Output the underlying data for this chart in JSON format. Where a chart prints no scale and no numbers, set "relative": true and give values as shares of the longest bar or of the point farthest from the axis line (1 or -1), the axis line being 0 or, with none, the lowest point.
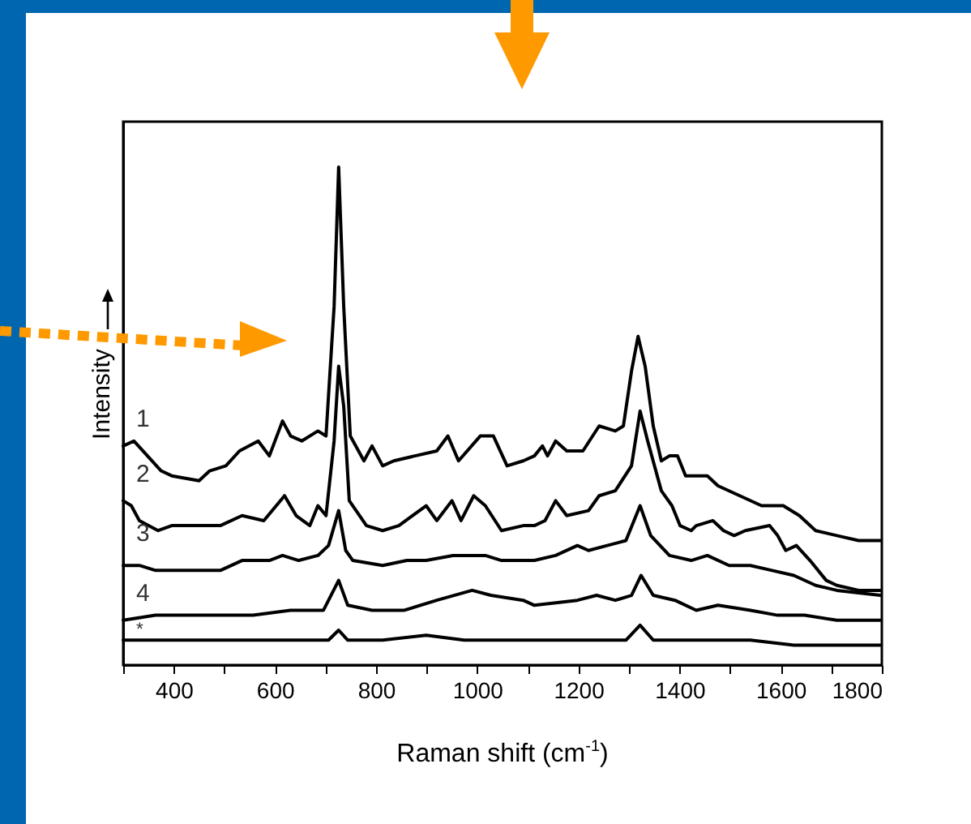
{
  "chart_data": {
    "type": "line",
    "relative": true,
    "xlabel": "Raman shift (cm$^{-1}$)",
    "ylabel": "Intensity",
    "xlim": [
      300,
      1800
    ],
    "xticks": [
      {
        "value": 300,
        "label": null
      },
      400,
      {
        "value": 500,
        "label": null
      },
      600,
      {
        "value": 700,
        "label": null
      },
      800,
      {
        "value": 900,
        "label": null
      },
      1000,
      {
        "value": 1100,
        "label": null
      },
      1200,
      {
        "value": 1300,
        "label": null
      },
      1400,
      {
        "value": 1500,
        "label": null
      },
      1600,
      {
        "value": 1700,
        "label": null
      },
      1800
    ],
    "grid": false,
    "line_style": "solid",
    "series": [
      {
        "name": "1",
        "color": "#000000",
        "x": [
          300,
          321,
          375,
          396,
          450,
          471,
          503,
          530,
          567,
          589,
          615,
          631,
          653,
          685,
          701,
          717,
          726,
          736,
          749,
          776,
          792,
          813,
          835,
          877,
          920,
          942,
          963,
          1006,
          1032,
          1059,
          1091,
          1113,
          1129,
          1139,
          1155,
          1177,
          1209,
          1241,
          1273,
          1289,
          1305,
          1318,
          1332,
          1348,
          1364,
          1380,
          1396,
          1412,
          1455,
          1476,
          1519,
          1562,
          1605,
          1637,
          1669,
          1711,
          1754,
          1797
        ],
        "values": [
          0.44,
          0.45,
          0.39,
          0.38,
          0.37,
          0.39,
          0.4,
          0.43,
          0.45,
          0.42,
          0.49,
          0.46,
          0.45,
          0.47,
          0.46,
          0.72,
          1,
          0.72,
          0.46,
          0.41,
          0.44,
          0.4,
          0.41,
          0.42,
          0.43,
          0.46,
          0.41,
          0.46,
          0.46,
          0.4,
          0.41,
          0.42,
          0.44,
          0.42,
          0.45,
          0.43,
          0.43,
          0.48,
          0.47,
          0.48,
          0.59,
          0.66,
          0.6,
          0.48,
          0.41,
          0.42,
          0.42,
          0.38,
          0.38,
          0.36,
          0.34,
          0.32,
          0.32,
          0.3,
          0.27,
          0.26,
          0.25,
          0.25
        ]
      },
      {
        "name": "2",
        "color": "#000000",
        "x": [
          300,
          316,
          332,
          369,
          396,
          439,
          492,
          535,
          578,
          619,
          642,
          669,
          685,
          701,
          717,
          726,
          736,
          747,
          781,
          813,
          845,
          899,
          920,
          950,
          968,
          993,
          1016,
          1048,
          1091,
          1113,
          1134,
          1155,
          1177,
          1220,
          1241,
          1273,
          1305,
          1322,
          1337,
          1364,
          1385,
          1401,
          1423,
          1433,
          1466,
          1487,
          1508,
          1530,
          1578,
          1594,
          1610,
          1631,
          1658,
          1690,
          1711,
          1754,
          1797
        ],
        "values": [
          0.33,
          0.32,
          0.29,
          0.27,
          0.28,
          0.28,
          0.28,
          0.3,
          0.29,
          0.34,
          0.3,
          0.28,
          0.32,
          0.3,
          0.45,
          0.6,
          0.52,
          0.33,
          0.28,
          0.27,
          0.28,
          0.32,
          0.29,
          0.33,
          0.29,
          0.34,
          0.32,
          0.27,
          0.28,
          0.28,
          0.29,
          0.33,
          0.3,
          0.31,
          0.34,
          0.35,
          0.4,
          0.51,
          0.45,
          0.35,
          0.32,
          0.28,
          0.27,
          0.28,
          0.29,
          0.27,
          0.26,
          0.27,
          0.28,
          0.26,
          0.23,
          0.24,
          0.21,
          0.17,
          0.16,
          0.15,
          0.15
        ]
      },
      {
        "name": "3",
        "color": "#000000",
        "x": [
          300,
          332,
          364,
          439,
          492,
          535,
          589,
          615,
          647,
          685,
          706,
          726,
          740,
          754,
          813,
          861,
          899,
          952,
          1016,
          1048,
          1091,
          1113,
          1155,
          1198,
          1220,
          1257,
          1294,
          1322,
          1343,
          1380,
          1423,
          1455,
          1498,
          1540,
          1583,
          1626,
          1669,
          1711,
          1797
        ],
        "values": [
          0.2,
          0.2,
          0.19,
          0.19,
          0.19,
          0.21,
          0.21,
          0.22,
          0.21,
          0.22,
          0.24,
          0.31,
          0.23,
          0.21,
          0.2,
          0.21,
          0.21,
          0.22,
          0.22,
          0.21,
          0.21,
          0.21,
          0.22,
          0.24,
          0.23,
          0.24,
          0.25,
          0.32,
          0.26,
          0.22,
          0.21,
          0.22,
          0.2,
          0.2,
          0.19,
          0.18,
          0.16,
          0.15,
          0.14
        ]
      },
      {
        "name": "4",
        "color": "#000000",
        "x": [
          300,
          364,
          439,
          492,
          557,
          631,
          696,
          726,
          744,
          792,
          856,
          920,
          990,
          1027,
          1091,
          1113,
          1198,
          1236,
          1273,
          1305,
          1324,
          1348,
          1391,
          1433,
          1476,
          1540,
          1594,
          1647,
          1711,
          1797
        ],
        "values": [
          0.09,
          0.1,
          0.1,
          0.1,
          0.1,
          0.11,
          0.11,
          0.17,
          0.12,
          0.11,
          0.11,
          0.13,
          0.15,
          0.14,
          0.13,
          0.12,
          0.13,
          0.14,
          0.13,
          0.14,
          0.18,
          0.14,
          0.13,
          0.11,
          0.12,
          0.11,
          0.1,
          0.1,
          0.09,
          0.09
        ]
      },
      {
        "name": "*",
        "color": "#000000",
        "x": [
          300,
          385,
          492,
          599,
          706,
          726,
          744,
          813,
          899,
          974,
          1048,
          1113,
          1220,
          1294,
          1322,
          1348,
          1433,
          1540,
          1626,
          1711,
          1797
        ],
        "values": [
          0.05,
          0.05,
          0.05,
          0.05,
          0.05,
          0.07,
          0.05,
          0.05,
          0.06,
          0.05,
          0.05,
          0.05,
          0.05,
          0.05,
          0.08,
          0.05,
          0.05,
          0.05,
          0.04,
          0.04,
          0.04
        ]
      }
    ]
  }
}
